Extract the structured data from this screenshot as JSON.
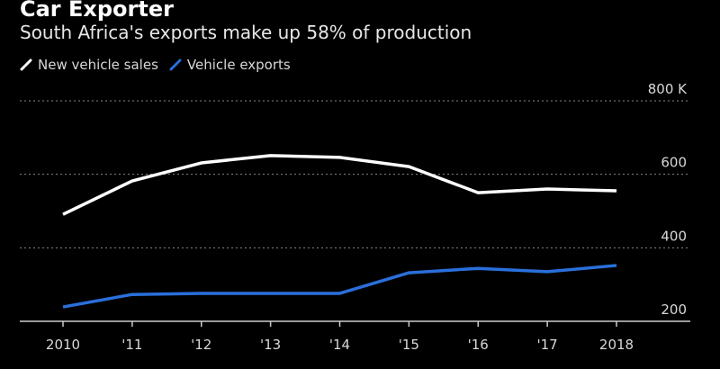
{
  "header": {
    "title": "Car Exporter",
    "subtitle": "South Africa's exports make up 58% of production"
  },
  "colors": {
    "background": "#000000",
    "sales": "#ffffff",
    "exports": "#2a6fdb",
    "grid": "#888888",
    "axis": "#cccccc"
  },
  "chart_data": {
    "type": "line",
    "title": "Car Exporter",
    "subtitle": "South Africa's exports make up 58% of production",
    "xlabel": "",
    "ylabel": "",
    "categories": [
      "2010",
      "'11",
      "'12",
      "'13",
      "'14",
      "'15",
      "'16",
      "'17",
      "2018"
    ],
    "series": [
      {
        "name": "New vehicle sales",
        "color": "#ffffff",
        "values": [
          491,
          582,
          631,
          651,
          646,
          621,
          550,
          560,
          555
        ]
      },
      {
        "name": "Vehicle exports",
        "color": "#2a6fdb",
        "values": [
          239,
          273,
          276,
          276,
          276,
          332,
          344,
          335,
          352
        ]
      }
    ],
    "ylim": [
      200,
      800
    ],
    "yticks": [
      200,
      400,
      600,
      800
    ],
    "ytick_labels": [
      "200",
      "400",
      "600",
      "800 K"
    ],
    "y_axis_side": "right",
    "grid": true,
    "legend_position": "top-left"
  }
}
